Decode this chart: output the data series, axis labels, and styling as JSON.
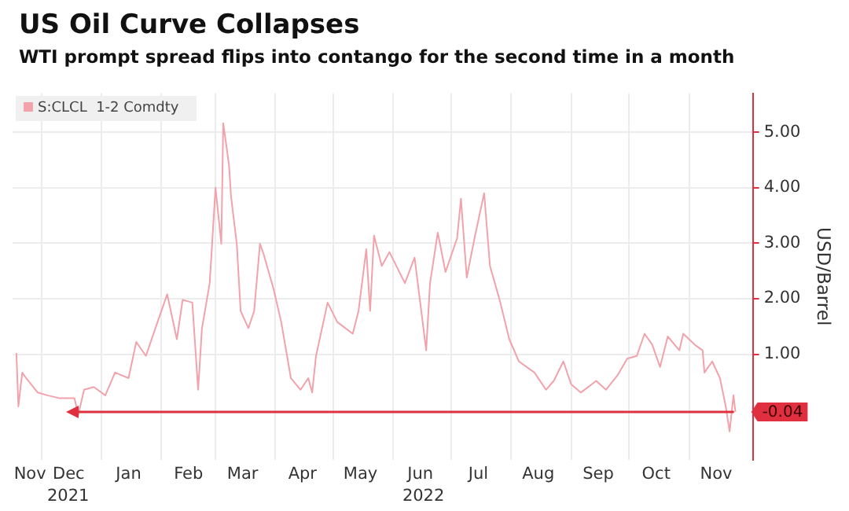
{
  "chart_data": {
    "type": "line",
    "title": "US Oil Curve Collapses",
    "subtitle": "WTI prompt spread flips into contango for the second time in a month",
    "ylabel": "USD/Barrel",
    "x": [
      "2021-11-18",
      "2021-11-19",
      "2021-11-21",
      "2021-11-23",
      "2021-11-29",
      "2021-12-04",
      "2021-12-10",
      "2021-12-18",
      "2021-12-20",
      "2021-12-23",
      "2021-12-28",
      "2022-01-03",
      "2022-01-08",
      "2022-01-15",
      "2022-01-19",
      "2022-01-24",
      "2022-01-30",
      "2022-02-04",
      "2022-02-09",
      "2022-02-12",
      "2022-02-17",
      "2022-02-20",
      "2022-02-22",
      "2022-02-26",
      "2022-03-01",
      "2022-03-04",
      "2022-03-05",
      "2022-03-08",
      "2022-03-09",
      "2022-03-12",
      "2022-03-14",
      "2022-03-18",
      "2022-03-21",
      "2022-03-24",
      "2022-03-26",
      "2022-03-31",
      "2022-04-04",
      "2022-04-09",
      "2022-04-14",
      "2022-04-18",
      "2022-04-20",
      "2022-04-22",
      "2022-04-28",
      "2022-05-03",
      "2022-05-11",
      "2022-05-14",
      "2022-05-18",
      "2022-05-20",
      "2022-05-22",
      "2022-05-26",
      "2022-05-30",
      "2022-06-07",
      "2022-06-12",
      "2022-06-18",
      "2022-06-20",
      "2022-06-24",
      "2022-06-28",
      "2022-07-04",
      "2022-07-06",
      "2022-07-09",
      "2022-07-13",
      "2022-07-18",
      "2022-07-21",
      "2022-07-26",
      "2022-07-31",
      "2022-08-05",
      "2022-08-13",
      "2022-08-19",
      "2022-08-23",
      "2022-08-28",
      "2022-09-01",
      "2022-09-06",
      "2022-09-14",
      "2022-09-19",
      "2022-09-25",
      "2022-09-30",
      "2022-10-05",
      "2022-10-09",
      "2022-10-13",
      "2022-10-17",
      "2022-10-21",
      "2022-10-27",
      "2022-10-29",
      "2022-11-04",
      "2022-11-08",
      "2022-11-09",
      "2022-11-13",
      "2022-11-17",
      "2022-11-20",
      "2022-11-22",
      "2022-11-24",
      "2022-11-25"
    ],
    "series": [
      {
        "name": "S:CLCL  1-2 Comdty",
        "color": "#f2a2aa",
        "values": [
          1.02,
          0.06,
          0.67,
          0.57,
          0.31,
          0.26,
          0.21,
          0.21,
          -0.09,
          0.36,
          0.41,
          0.26,
          0.67,
          0.57,
          1.22,
          0.97,
          1.58,
          2.08,
          1.27,
          1.98,
          1.93,
          0.36,
          1.47,
          2.28,
          4.0,
          2.99,
          5.16,
          4.4,
          3.85,
          2.99,
          1.78,
          1.47,
          1.78,
          2.99,
          2.79,
          2.18,
          1.58,
          0.57,
          0.36,
          0.57,
          0.31,
          0.97,
          1.93,
          1.58,
          1.37,
          1.78,
          2.89,
          1.78,
          3.14,
          2.59,
          2.84,
          2.28,
          2.74,
          1.07,
          2.28,
          3.19,
          2.48,
          3.09,
          3.8,
          2.38,
          3.09,
          3.9,
          2.59,
          1.98,
          1.27,
          0.87,
          0.67,
          0.36,
          0.52,
          0.87,
          0.46,
          0.31,
          0.52,
          0.36,
          0.62,
          0.92,
          0.97,
          1.37,
          1.17,
          0.77,
          1.32,
          1.07,
          1.37,
          1.17,
          1.07,
          0.67,
          0.87,
          0.57,
          0.06,
          -0.39,
          0.26,
          -0.04
        ]
      }
    ],
    "xlim": [
      "2021-11-16",
      "2022-12-04"
    ],
    "xticks": [
      {
        "value": "2021-11-25",
        "label": "Nov"
      },
      {
        "value": "2021-12-01",
        "label": null
      },
      {
        "value": "2021-12-15",
        "label": "Dec"
      },
      {
        "value": "2022-01-01",
        "label": null
      },
      {
        "value": "2022-01-15",
        "label": "Jan"
      },
      {
        "value": "2022-02-01",
        "label": null
      },
      {
        "value": "2022-02-15",
        "label": "Feb"
      },
      {
        "value": "2022-03-01",
        "label": null
      },
      {
        "value": "2022-03-15",
        "label": "Mar"
      },
      {
        "value": "2022-04-01",
        "label": null
      },
      {
        "value": "2022-04-15",
        "label": "Apr"
      },
      {
        "value": "2022-05-01",
        "label": null
      },
      {
        "value": "2022-05-15",
        "label": "May"
      },
      {
        "value": "2022-06-01",
        "label": null
      },
      {
        "value": "2022-06-15",
        "label": "Jun"
      },
      {
        "value": "2022-07-01",
        "label": null
      },
      {
        "value": "2022-07-15",
        "label": "Jul"
      },
      {
        "value": "2022-08-01",
        "label": null
      },
      {
        "value": "2022-08-15",
        "label": "Aug"
      },
      {
        "value": "2022-09-01",
        "label": null
      },
      {
        "value": "2022-09-15",
        "label": "Sep"
      },
      {
        "value": "2022-10-01",
        "label": null
      },
      {
        "value": "2022-10-15",
        "label": "Oct"
      },
      {
        "value": "2022-11-01",
        "label": null
      },
      {
        "value": "2022-11-15",
        "label": "Nov"
      }
    ],
    "ylim": [
      -0.9,
      5.7
    ],
    "yticks": [
      {
        "value": 1,
        "label": "1.00"
      },
      {
        "value": 2,
        "label": "2.00"
      },
      {
        "value": 3,
        "label": "3.00"
      },
      {
        "value": 4,
        "label": "4.00"
      },
      {
        "value": 5,
        "label": "5.00"
      }
    ],
    "ref_lines": [
      {
        "axis": "y",
        "value": -0.04,
        "label": "-0.04",
        "color": "#e0303f"
      }
    ],
    "annotations": [
      "2021",
      "2022"
    ],
    "grid": true,
    "legend": "top left"
  }
}
